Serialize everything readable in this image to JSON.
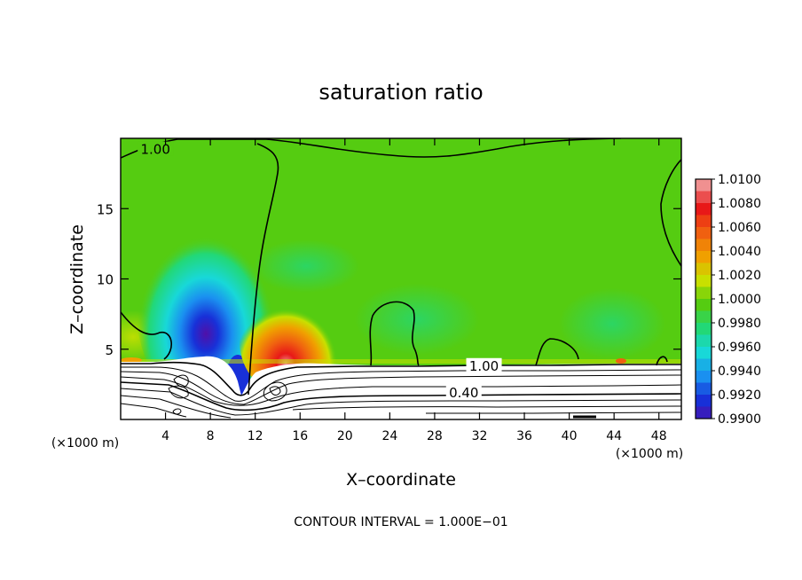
{
  "chart_data": {
    "type": "heatmap",
    "title": "saturation ratio",
    "xlabel": "X–coordinate",
    "ylabel": "Z–coordinate",
    "x_unit_left": "(×1000 m)",
    "x_unit_right": "(×1000 m)",
    "x_ticks": [
      4,
      8,
      12,
      16,
      20,
      24,
      28,
      32,
      36,
      40,
      44,
      48
    ],
    "y_ticks": [
      5,
      10,
      15
    ],
    "xlim": [
      0,
      50
    ],
    "ylim": [
      0,
      20
    ],
    "footer": "CONTOUR INTERVAL = 1.000E−01",
    "colorbar": {
      "levels": [
        "1.0100",
        "1.0080",
        "1.0060",
        "1.0040",
        "1.0020",
        "1.0000",
        "0.9980",
        "0.9960",
        "0.9940",
        "0.9920",
        "0.9900"
      ],
      "colors": [
        "#f09090",
        "#e81818",
        "#f06010",
        "#f0a000",
        "#c8e000",
        "#55cc11",
        "#22d877",
        "#18d8d8",
        "#1a90f0",
        "#1830d8",
        "#5010a8"
      ]
    },
    "background_value_color": "#55cc11",
    "contour_labels": [
      {
        "text": "1.00",
        "x": 3.1,
        "z": 19.2
      },
      {
        "text": "1.00",
        "x": 32.4,
        "z": 3.8
      },
      {
        "text": "0.40",
        "x": 30.6,
        "z": 1.9
      }
    ],
    "grid": false,
    "legend": "colorbar-right"
  }
}
